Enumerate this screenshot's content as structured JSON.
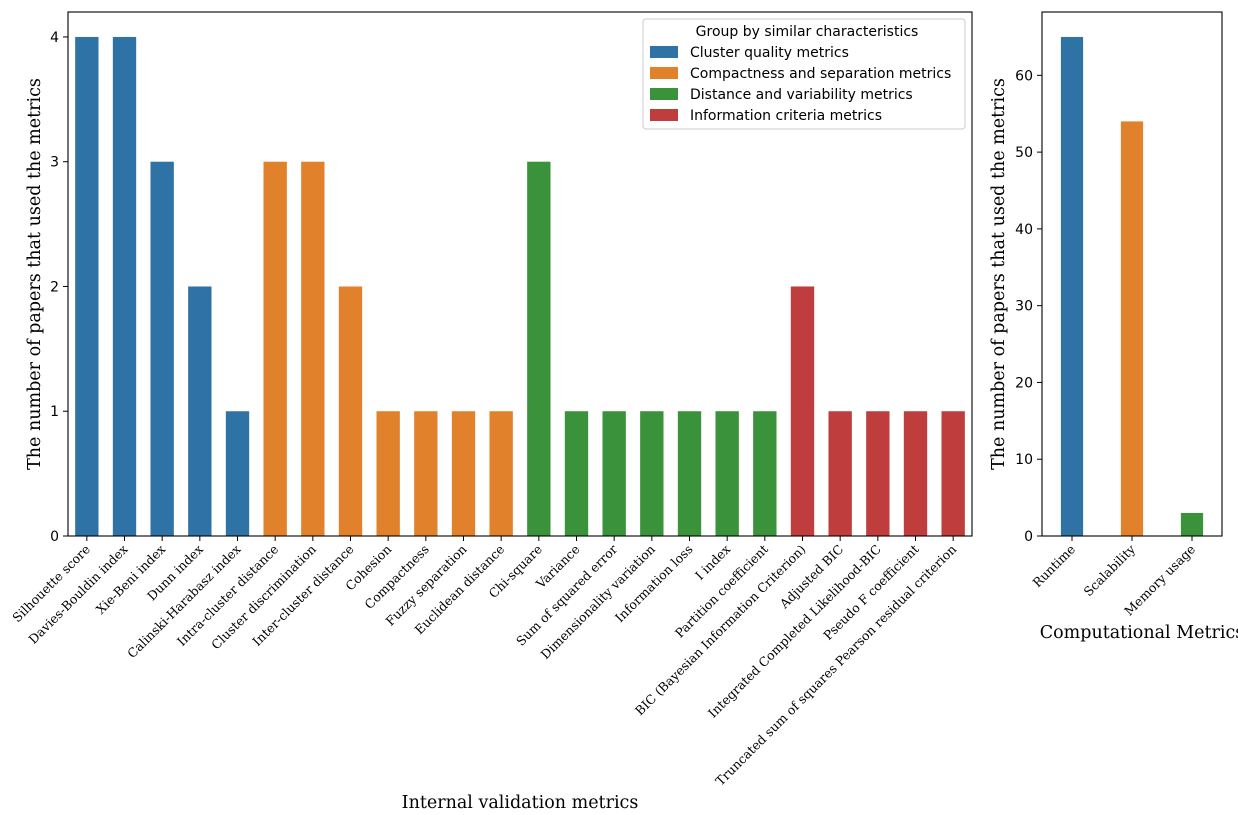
{
  "chart_data": [
    {
      "type": "bar",
      "xlabel": "Internal validation metrics",
      "ylabel": "The number of papers that used the metrics",
      "ylim": [
        0,
        4.2
      ],
      "yticks": [
        0,
        1,
        2,
        3,
        4
      ],
      "legend": {
        "title": "Group by similar characteristics",
        "placement": "top-right",
        "entries": [
          {
            "name": "Cluster quality metrics",
            "color": "#2f72a6"
          },
          {
            "name": "Compactness and separation metrics",
            "color": "#e1812c"
          },
          {
            "name": "Distance and variability metrics",
            "color": "#3a923a"
          },
          {
            "name": "Information criteria metrics",
            "color": "#c03d3e"
          }
        ]
      },
      "categories": [
        "Silhouette score",
        "Davies-Bouldin index",
        "Xie-Beni index",
        "Dunn index",
        "Calinski-Harabasz index",
        "Intra-cluster distance",
        "Cluster discrimination",
        "Inter-cluster distance",
        "Cohesion",
        "Compactness",
        "Fuzzy separation",
        "Euclidean distance",
        "Chi-square",
        "Variance",
        "Sum of squared error",
        "Dimensionality variation",
        "Information loss",
        "I index",
        "Partition coefficient",
        "BIC (Bayesian Information Criterion)",
        "Adjusted BIC",
        "Integrated Completed Likelihood-BIC",
        "Pseudo F coefficient",
        "Truncated sum of squares Pearson residual criterion"
      ],
      "values": [
        4,
        4,
        3,
        2,
        1,
        3,
        3,
        2,
        1,
        1,
        1,
        1,
        3,
        1,
        1,
        1,
        1,
        1,
        1,
        2,
        1,
        1,
        1,
        1
      ],
      "groups": [
        0,
        0,
        0,
        0,
        0,
        1,
        1,
        1,
        1,
        1,
        1,
        1,
        2,
        2,
        2,
        2,
        2,
        2,
        2,
        3,
        3,
        3,
        3,
        3
      ]
    },
    {
      "type": "bar",
      "xlabel": "Computational Metrics",
      "ylabel": "The number of papers that used the metrics",
      "ylim": [
        0,
        68.25
      ],
      "yticks": [
        0,
        10,
        20,
        30,
        40,
        50,
        60
      ],
      "categories": [
        "Runtime",
        "Scalability",
        "Memory usage"
      ],
      "values": [
        65,
        54,
        3
      ],
      "colors": [
        "#2f72a6",
        "#e1812c",
        "#3a923a"
      ]
    }
  ]
}
